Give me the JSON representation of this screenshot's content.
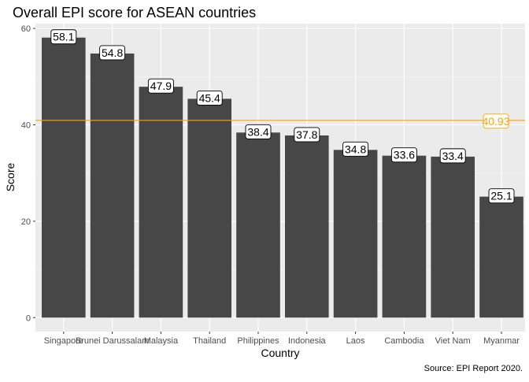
{
  "chart_data": {
    "type": "bar",
    "title": "Overall EPI score for ASEAN countries",
    "xlabel": "Country",
    "ylabel": "Score",
    "caption": "Source: EPI Report 2020.",
    "categories": [
      "Singapore",
      "Brunei Darussalam",
      "Malaysia",
      "Thailand",
      "Philippines",
      "Indonesia",
      "Laos",
      "Cambodia",
      "Viet Nam",
      "Myanmar"
    ],
    "values": [
      58.1,
      54.8,
      47.9,
      45.4,
      38.4,
      37.8,
      34.8,
      33.6,
      33.4,
      25.1
    ],
    "value_labels": [
      "58.1",
      "54.8",
      "47.9",
      "45.4",
      "38.4",
      "37.8",
      "34.8",
      "33.6",
      "33.4",
      "25.1"
    ],
    "yticks": [
      0,
      20,
      40,
      60
    ],
    "ytick_labels": [
      "0",
      "20",
      "40",
      "60"
    ],
    "ylim": [
      -2.9,
      61.0
    ],
    "reference_line": {
      "value": 40.93,
      "label": "40.93",
      "color": "#ffa500"
    },
    "grid": true,
    "colors": {
      "bar": "#474747",
      "panel": "#ebebeb",
      "grid_major": "#ffffff",
      "grid_minor": "#f5f5f5",
      "axis_text": "#4d4d4d",
      "text": "#000000"
    }
  }
}
